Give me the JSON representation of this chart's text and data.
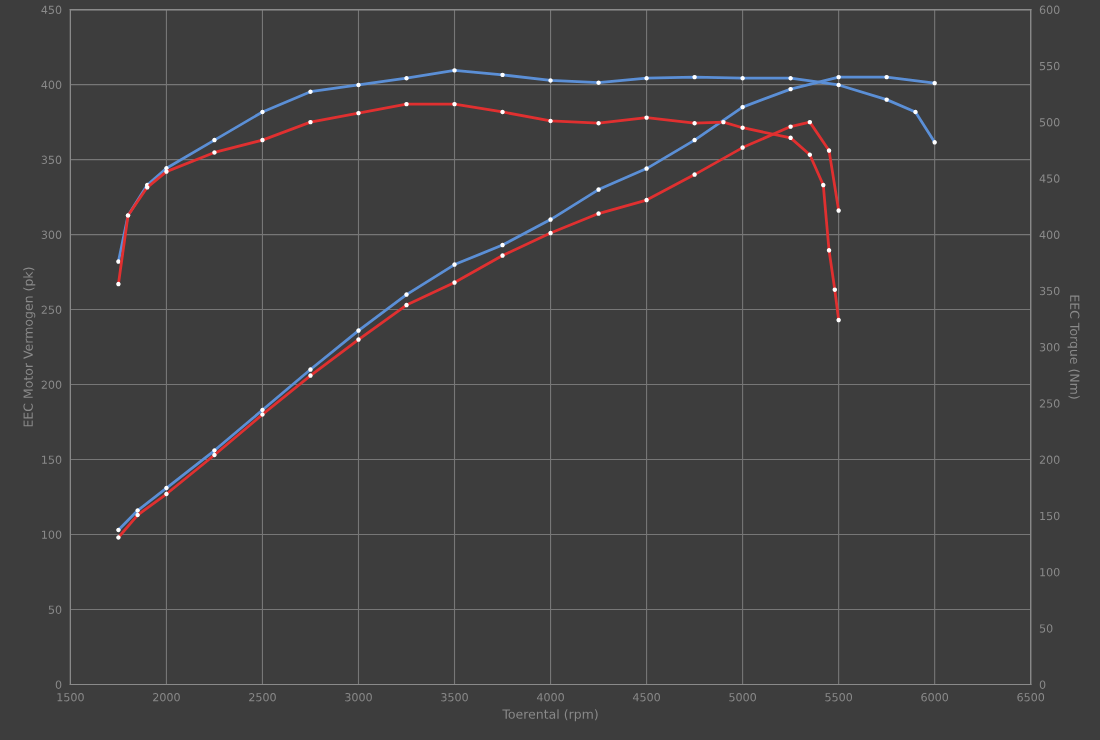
{
  "chart_data": {
    "type": "line",
    "xlabel": "Toerental (rpm)",
    "ylabel": "EEC Motor Vermogen (pk)",
    "y2label": "EEC Torque (Nm)",
    "xlim": [
      1500,
      6500
    ],
    "xticks": [
      1500,
      2000,
      2500,
      3000,
      3500,
      4000,
      4500,
      5000,
      5500,
      6000,
      6500
    ],
    "ylim": [
      0,
      450
    ],
    "yticks": [
      0,
      50,
      100,
      150,
      200,
      250,
      300,
      350,
      400,
      450
    ],
    "y2lim": [
      0,
      600
    ],
    "y2ticks": [
      0,
      50,
      100,
      150,
      200,
      250,
      300,
      350,
      400,
      450,
      500,
      550,
      600
    ],
    "grid": true,
    "marker": "circle",
    "line_style": "solid",
    "series": [
      {
        "color": "#5b8fd6",
        "axis": "y",
        "x": [
          1750,
          1850,
          2000,
          2250,
          2500,
          2750,
          3000,
          3250,
          3500,
          3750,
          4000,
          4250,
          4500,
          4750,
          5000,
          5250,
          5500,
          5750,
          6000
        ],
        "values": [
          103,
          116,
          131,
          156,
          183,
          210,
          236,
          260,
          280,
          293,
          310,
          330,
          344,
          363,
          385,
          397,
          405,
          405,
          401
        ]
      },
      {
        "color": "#e03030",
        "axis": "y",
        "x": [
          1750,
          1850,
          2000,
          2250,
          2500,
          2750,
          3000,
          3250,
          3500,
          3750,
          4000,
          4250,
          4500,
          4750,
          5000,
          5250,
          5350,
          5450,
          5500
        ],
        "values": [
          98,
          113,
          127,
          153,
          180,
          206,
          230,
          253,
          268,
          286,
          301,
          314,
          323,
          340,
          358,
          372,
          375,
          356,
          316
        ]
      },
      {
        "color": "#5b8fd6",
        "axis": "y2",
        "x": [
          1750,
          1800,
          1900,
          2000,
          2250,
          2500,
          2750,
          3000,
          3250,
          3500,
          3750,
          4000,
          4250,
          4500,
          4750,
          5000,
          5250,
          5500,
          5750,
          5900,
          6000
        ],
        "values": [
          376,
          417,
          444,
          459,
          484,
          509,
          527,
          533,
          539,
          546,
          542,
          537,
          535,
          539,
          540,
          539,
          539,
          533,
          520,
          509,
          482
        ]
      },
      {
        "color": "#e03030",
        "axis": "y2",
        "x": [
          1750,
          1800,
          1900,
          2000,
          2250,
          2500,
          2750,
          3000,
          3250,
          3500,
          3750,
          4000,
          4250,
          4500,
          4750,
          4900,
          5000,
          5250,
          5350,
          5420,
          5450,
          5480,
          5500
        ],
        "values": [
          356,
          417,
          442,
          456,
          473,
          484,
          500,
          508,
          516,
          516,
          509,
          501,
          499,
          504,
          499,
          500,
          495,
          486,
          471,
          444,
          386,
          351,
          324
        ]
      }
    ]
  }
}
